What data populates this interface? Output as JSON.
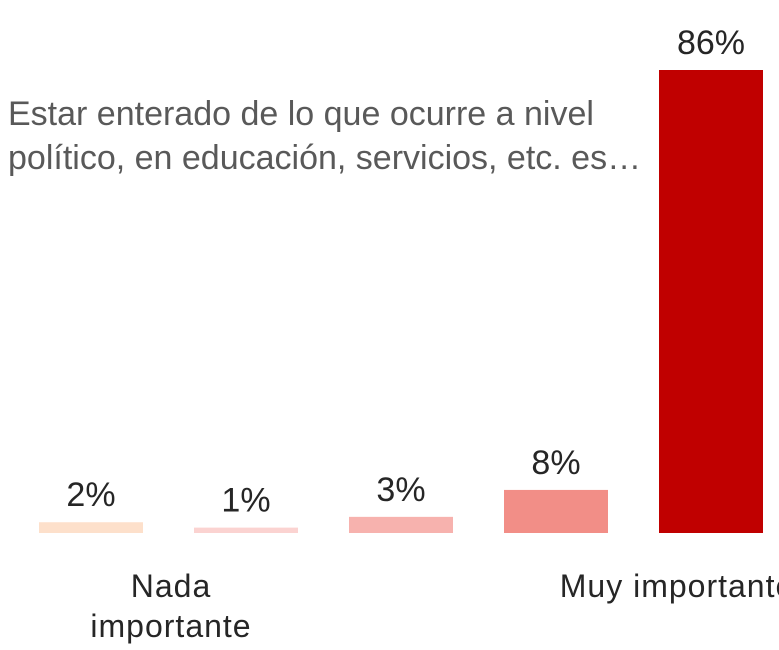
{
  "chart_data": {
    "type": "bar",
    "title": "Estar enterado de lo que ocurre a nivel político, en educación, servicios, etc. es…",
    "categories": [
      "Nada importante",
      null,
      null,
      null,
      "Muy importante"
    ],
    "values": [
      2,
      1,
      3,
      8,
      86
    ],
    "value_labels": [
      "2%",
      "1%",
      "3%",
      "8%",
      "86%"
    ],
    "colors": [
      "#fde0cb",
      "#fbd3d1",
      "#f7b2ae",
      "#f28e87",
      "#c00000"
    ]
  }
}
